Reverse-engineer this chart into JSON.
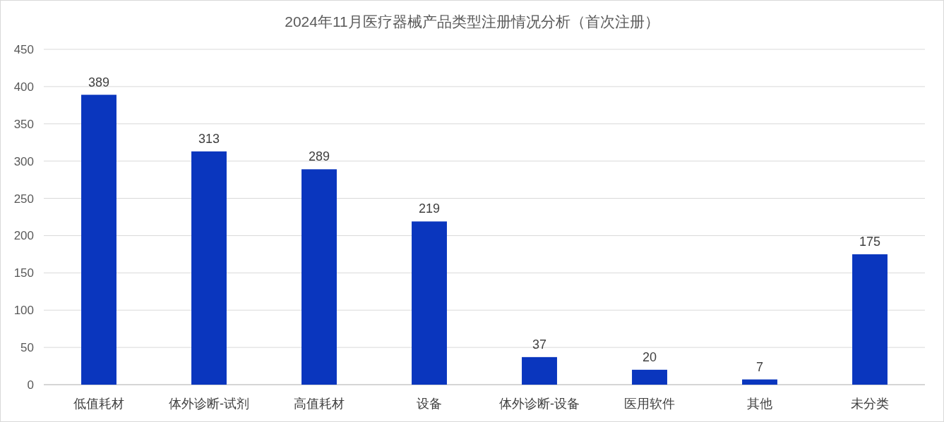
{
  "chart_data": {
    "type": "bar",
    "title": "2024年11月医疗器械产品类型注册情况分析（首次注册）",
    "categories": [
      "低值耗材",
      "体外诊断-试剂",
      "高值耗材",
      "设备",
      "体外诊断-设备",
      "医用软件",
      "其他",
      "未分类"
    ],
    "values": [
      389,
      313,
      289,
      219,
      37,
      20,
      7,
      175
    ],
    "color": "#0a36be",
    "ylim": [
      0,
      450
    ],
    "yticks": [
      0,
      50,
      100,
      150,
      200,
      250,
      300,
      350,
      400,
      450
    ],
    "grid": "y",
    "data_labels": true
  }
}
